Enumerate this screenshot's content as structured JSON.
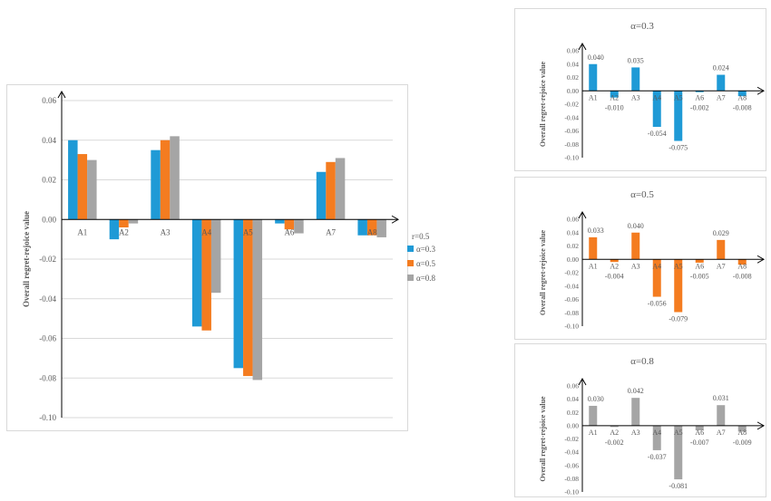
{
  "colors": {
    "alpha03": "#1f9ad6",
    "alpha05": "#f47c20",
    "alpha08": "#a5a5a5",
    "grid": "#d9d9d9",
    "axis": "#000000"
  },
  "chart_data": [
    {
      "type": "bar",
      "title": "",
      "xlabel": "",
      "ylabel": "Overall regret-rejoice value",
      "ylim": [
        -0.1,
        0.06
      ],
      "yticks": [
        "0.06",
        "0.04",
        "0.02",
        "0.00",
        "-0.02",
        "-0.04",
        "-0.06",
        "-0.08",
        "-0.10"
      ],
      "ytick_values": [
        0.06,
        0.04,
        0.02,
        0.0,
        -0.02,
        -0.04,
        -0.06,
        -0.08,
        -0.1
      ],
      "categories": [
        "A1",
        "A2",
        "A3",
        "A4",
        "A5",
        "A6",
        "A7",
        "A8"
      ],
      "legend_title": "r=0.5",
      "legend_position": "right",
      "grid": true,
      "series": [
        {
          "name": "α=0.3",
          "values": [
            0.04,
            -0.01,
            0.035,
            -0.054,
            -0.075,
            -0.002,
            0.024,
            -0.008
          ]
        },
        {
          "name": "α=0.5",
          "values": [
            0.033,
            -0.004,
            0.04,
            -0.056,
            -0.079,
            -0.005,
            0.029,
            -0.008
          ]
        },
        {
          "name": "α=0.8",
          "values": [
            0.03,
            -0.002,
            0.042,
            -0.037,
            -0.081,
            -0.007,
            0.031,
            -0.009
          ]
        }
      ]
    },
    {
      "type": "bar",
      "title": "α=0.3",
      "ylabel": "Overall regret-rejoice value",
      "ylim": [
        -0.1,
        0.06
      ],
      "yticks": [
        "0.06",
        "0.04",
        "0.02",
        "0.00",
        "-0.02",
        "-0.04",
        "-0.06",
        "-0.08",
        "-0.10"
      ],
      "categories": [
        "A1",
        "A2",
        "A3",
        "A4",
        "A5",
        "A6",
        "A7",
        "A8"
      ],
      "values": [
        0.04,
        -0.01,
        0.035,
        -0.054,
        -0.075,
        -0.002,
        0.024,
        -0.008
      ],
      "data_labels": [
        "0.040",
        "-0.010",
        "0.035",
        "-0.054",
        "-0.075",
        "-0.002",
        "0.024",
        "-0.008"
      ]
    },
    {
      "type": "bar",
      "title": "α=0.5",
      "ylabel": "Overall regret-rejoice value",
      "ylim": [
        -0.1,
        0.06
      ],
      "yticks": [
        "0.06",
        "0.04",
        "0.02",
        "0.00",
        "-0.02",
        "-0.04",
        "-0.06",
        "-0.08",
        "-0.10"
      ],
      "categories": [
        "A1",
        "A2",
        "A3",
        "A4",
        "A5",
        "A6",
        "A7",
        "A8"
      ],
      "values": [
        0.033,
        -0.004,
        0.04,
        -0.056,
        -0.079,
        -0.005,
        0.029,
        -0.008
      ],
      "data_labels": [
        "0.033",
        "-0.004",
        "0.040",
        "-0.056",
        "-0.079",
        "-0.005",
        "0.029",
        "-0.008"
      ]
    },
    {
      "type": "bar",
      "title": "α=0.8",
      "ylabel": "Overall regret-rejoice value",
      "ylim": [
        -0.1,
        0.06
      ],
      "yticks": [
        "0.06",
        "0.04",
        "0.02",
        "0.00",
        "-0.02",
        "-0.04",
        "-0.06",
        "-0.08",
        "-0.10"
      ],
      "categories": [
        "A1",
        "A2",
        "A3",
        "A4",
        "A5",
        "A6",
        "A7",
        "A8"
      ],
      "values": [
        0.03,
        -0.002,
        0.042,
        -0.037,
        -0.081,
        -0.007,
        0.031,
        -0.009
      ],
      "data_labels": [
        "0.030",
        "-0.002",
        "0.042",
        "-0.037",
        "-0.081",
        "-0.007",
        "0.031",
        "-0.009"
      ]
    }
  ]
}
